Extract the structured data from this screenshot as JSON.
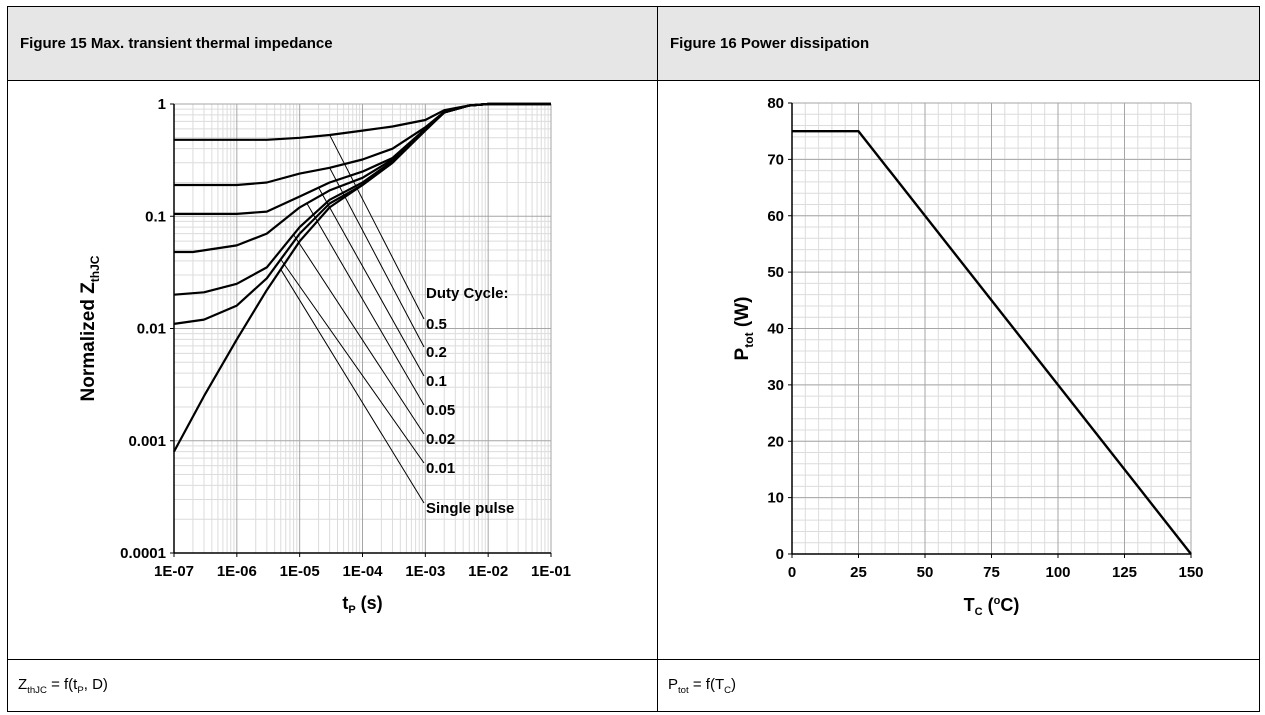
{
  "figures": [
    {
      "header": "Figure 15 Max. transient thermal impedance",
      "caption": {
        "z": "Z",
        "z_sub": "thJC",
        "rest1": " = f(t",
        "t_sub": "P",
        "rest2": ", D)"
      }
    },
    {
      "header": "Figure 16 Power dissipation",
      "caption": {
        "p": "P",
        "p_sub": "tot",
        "rest1": " = f(T",
        "t_sub": "C",
        "rest2": ")"
      }
    }
  ],
  "chart_data": [
    {
      "type": "line",
      "x_scale": "log",
      "y_scale": "log",
      "xlim": [
        1e-07,
        0.1
      ],
      "ylim": [
        0.0001,
        1
      ],
      "x_ticks": [
        "1E-07",
        "1E-06",
        "1E-05",
        "1E-04",
        "1E-03",
        "1E-02",
        "1E-01"
      ],
      "y_ticks": [
        "0.0001",
        "0.001",
        "0.01",
        "0.1",
        "1"
      ],
      "xlabel": {
        "main": "t",
        "sub": "P",
        "unit": " (s)"
      },
      "ylabel": {
        "main": "Normalized Z",
        "sub": "thJC"
      },
      "grid": true,
      "legend_title": "Duty Cycle:",
      "series": [
        {
          "name": "0.5",
          "x": [
            1e-07,
            1e-06,
            3e-06,
            1e-05,
            3e-05,
            0.0001,
            0.0003,
            0.001,
            0.002,
            0.005,
            0.01,
            0.1
          ],
          "y": [
            0.48,
            0.48,
            0.48,
            0.5,
            0.53,
            0.58,
            0.63,
            0.72,
            0.88,
            0.97,
            1.0,
            1.0
          ]
        },
        {
          "name": "0.2",
          "x": [
            1e-07,
            1e-06,
            3e-06,
            1e-05,
            3e-05,
            0.0001,
            0.0003,
            0.001,
            0.002,
            0.005,
            0.01,
            0.1
          ],
          "y": [
            0.19,
            0.19,
            0.2,
            0.24,
            0.27,
            0.32,
            0.4,
            0.62,
            0.85,
            0.97,
            1.0,
            1.0
          ]
        },
        {
          "name": "0.1",
          "x": [
            1e-07,
            1e-06,
            3e-06,
            1e-05,
            3e-05,
            0.0001,
            0.0003,
            0.001,
            0.002,
            0.005,
            0.01,
            0.1
          ],
          "y": [
            0.105,
            0.105,
            0.11,
            0.15,
            0.2,
            0.25,
            0.33,
            0.6,
            0.84,
            0.97,
            1.0,
            1.0
          ]
        },
        {
          "name": "0.05",
          "x": [
            1e-07,
            2e-07,
            1e-06,
            3e-06,
            1e-05,
            3e-05,
            0.0001,
            0.0003,
            0.001,
            0.002,
            0.005,
            0.01,
            0.1
          ],
          "y": [
            0.048,
            0.048,
            0.055,
            0.07,
            0.12,
            0.17,
            0.22,
            0.32,
            0.6,
            0.84,
            0.97,
            1.0,
            1.0
          ]
        },
        {
          "name": "0.02",
          "x": [
            1e-07,
            3e-07,
            1e-06,
            3e-06,
            1e-05,
            3e-05,
            0.0001,
            0.0003,
            0.001,
            0.002,
            0.005,
            0.01,
            0.1
          ],
          "y": [
            0.02,
            0.021,
            0.025,
            0.035,
            0.08,
            0.14,
            0.2,
            0.31,
            0.59,
            0.84,
            0.97,
            1.0,
            1.0
          ]
        },
        {
          "name": "0.01",
          "x": [
            1e-07,
            3e-07,
            1e-06,
            3e-06,
            1e-05,
            3e-05,
            0.0001,
            0.0003,
            0.001,
            0.002,
            0.005,
            0.01,
            0.1
          ],
          "y": [
            0.011,
            0.012,
            0.016,
            0.028,
            0.07,
            0.13,
            0.19,
            0.3,
            0.59,
            0.84,
            0.97,
            1.0,
            1.0
          ]
        },
        {
          "name": "Single pulse",
          "x": [
            1e-07,
            3e-07,
            1e-06,
            3e-06,
            1e-05,
            3e-05,
            0.0001,
            0.0003,
            0.001,
            0.002,
            0.005,
            0.01,
            0.1
          ],
          "y": [
            0.0008,
            0.0025,
            0.008,
            0.022,
            0.06,
            0.12,
            0.19,
            0.3,
            0.58,
            0.84,
            0.97,
            1.0,
            1.0
          ]
        }
      ]
    },
    {
      "type": "line",
      "xlim": [
        0,
        150
      ],
      "ylim": [
        0,
        80
      ],
      "x_ticks": [
        0,
        25,
        50,
        75,
        100,
        125,
        150
      ],
      "y_ticks": [
        0,
        10,
        20,
        30,
        40,
        50,
        60,
        70,
        80
      ],
      "xlabel": {
        "main": "T",
        "sub": "C",
        "pre": " (",
        "sup": "o",
        "post": "C)"
      },
      "ylabel": {
        "main": "P",
        "sub": "tot",
        "unit": " (W)"
      },
      "grid": true,
      "series": [
        {
          "x": [
            0,
            25,
            150
          ],
          "y": [
            75,
            75,
            0
          ]
        }
      ]
    }
  ]
}
